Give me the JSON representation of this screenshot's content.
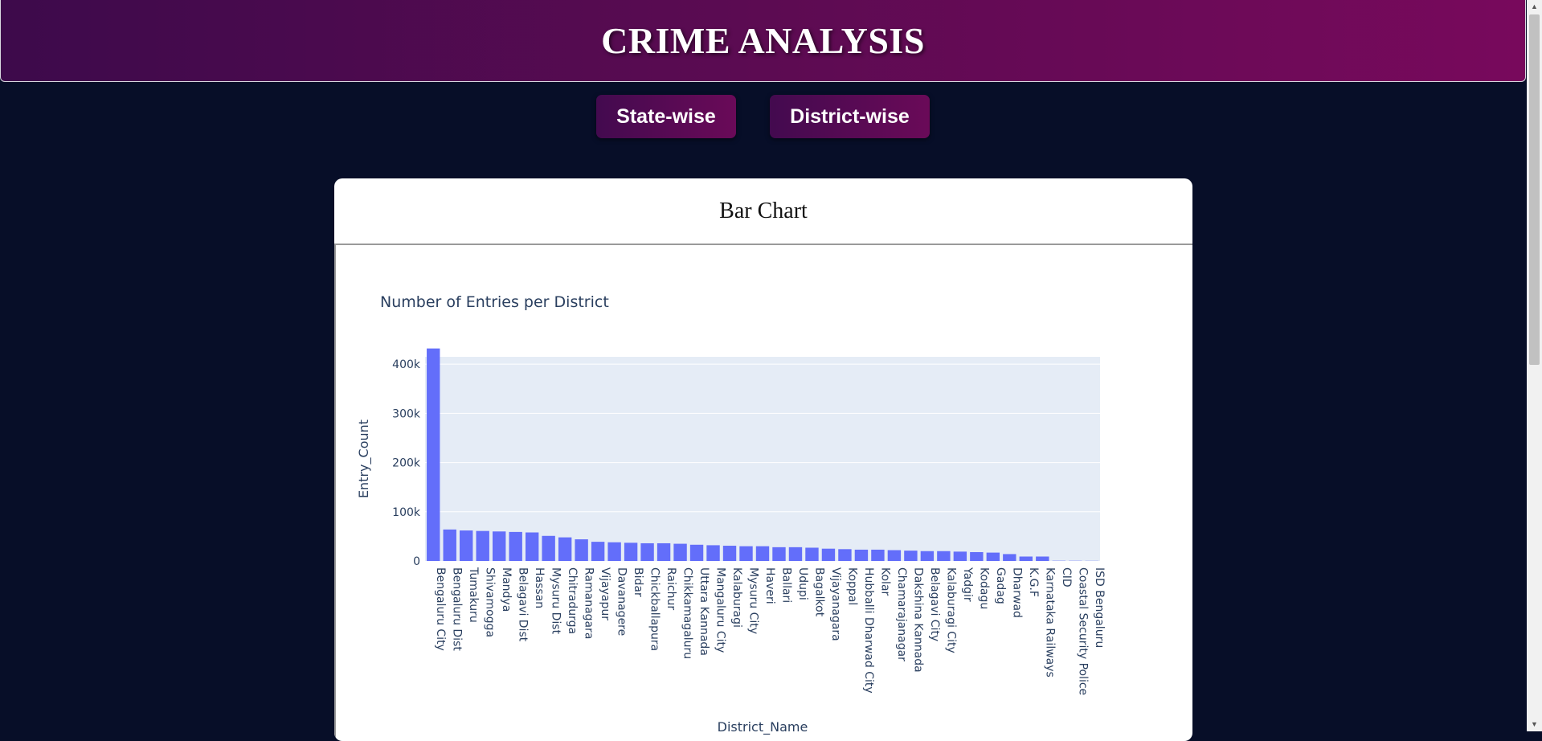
{
  "header": {
    "title": "CRIME ANALYSIS"
  },
  "nav": {
    "state_label": "State-wise",
    "district_label": "District-wise"
  },
  "card": {
    "title": "Bar Chart"
  },
  "colors": {
    "bar": "#636efa",
    "plot_bg": "#e5ecf6",
    "text": "#2a3f5f"
  },
  "chart_data": {
    "type": "bar",
    "title": "Number of Entries per District",
    "xlabel": "District_Name",
    "ylabel": "Entry_Count",
    "ylim": [
      0,
      415000
    ],
    "yticks": [
      0,
      100000,
      200000,
      300000,
      400000
    ],
    "ytick_labels": [
      "0",
      "100k",
      "200k",
      "300k",
      "400k"
    ],
    "grid": true,
    "categories": [
      "Bengaluru City",
      "Bengaluru Dist",
      "Tumakuru",
      "Shivamogga",
      "Mandya",
      "Belagavi Dist",
      "Hassan",
      "Mysuru Dist",
      "Chitradurga",
      "Ramanagara",
      "Vijayapur",
      "Davanagere",
      "Bidar",
      "Chickballapura",
      "Raichur",
      "Chikkamagaluru",
      "Uttara Kannada",
      "Mangaluru City",
      "Kalaburagi",
      "Mysuru City",
      "Haveri",
      "Ballari",
      "Udupi",
      "Bagalkot",
      "Vijayanagara",
      "Koppal",
      "Hubballi Dharwad City",
      "Kolar",
      "Chamarajanagar",
      "Dakshina Kannada",
      "Belagavi City",
      "Kalaburagi City",
      "Yadgir",
      "Kodagu",
      "Gadag",
      "Dharwad",
      "K.G.F",
      "Karnataka Railways",
      "CID",
      "Coastal Security Police",
      "ISD Bengaluru"
    ],
    "values": [
      432000,
      64000,
      62000,
      61000,
      60000,
      59000,
      58000,
      51000,
      48000,
      44000,
      39000,
      38000,
      37000,
      36000,
      36000,
      35000,
      33000,
      32000,
      31000,
      30000,
      30000,
      28000,
      28000,
      27000,
      25000,
      24000,
      23000,
      23000,
      22000,
      21000,
      20000,
      20000,
      19000,
      18000,
      17000,
      14000,
      9000,
      9000,
      500,
      400,
      300
    ]
  }
}
